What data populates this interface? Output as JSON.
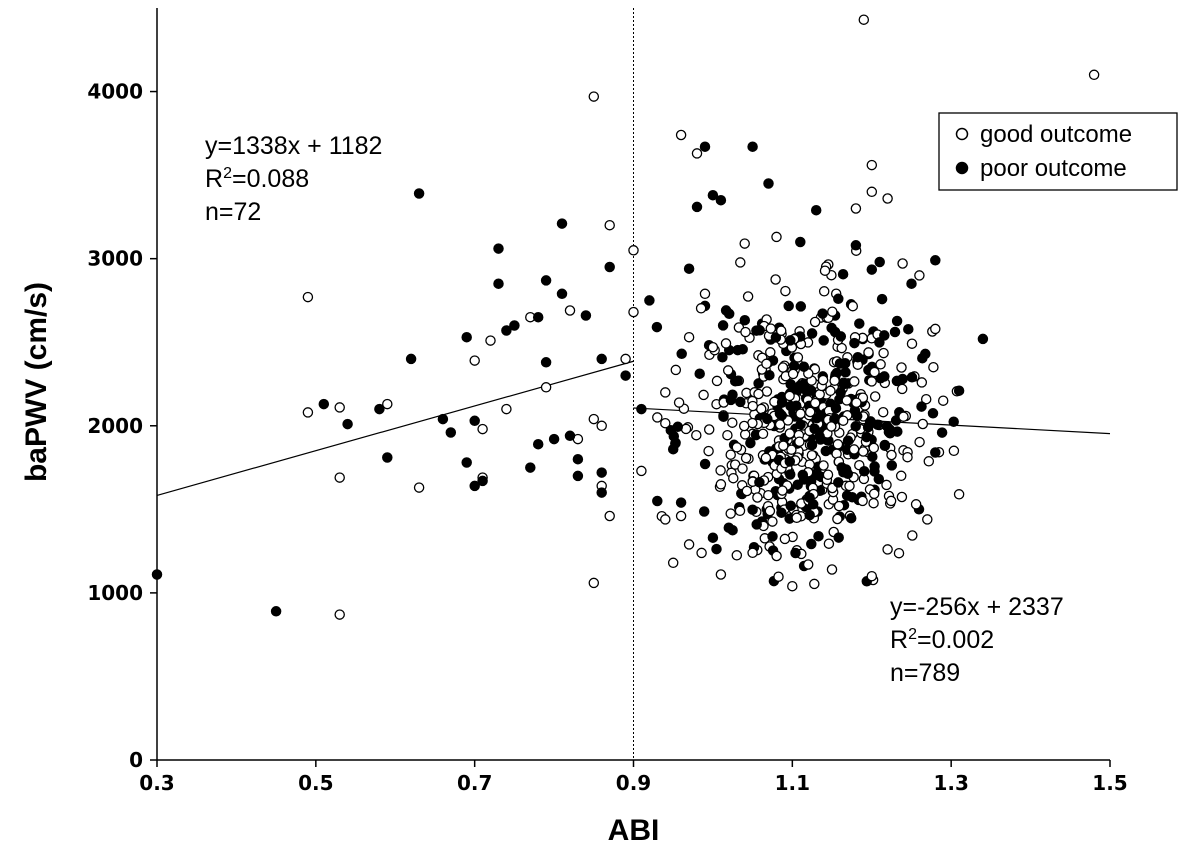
{
  "chart_data": {
    "type": "scatter",
    "xlabel": "ABI",
    "ylabel": "baPWV (cm/s)",
    "xlim": [
      0.3,
      1.5
    ],
    "ylim": [
      0,
      4500
    ],
    "xticks": [
      "0.3",
      "0.5",
      "0.7",
      "0.9",
      "1.1",
      "1.3",
      "1.5"
    ],
    "yticks": [
      "0",
      "1000",
      "2000",
      "3000",
      "4000"
    ],
    "grid": false,
    "legend_position": "top-right",
    "reference_line": {
      "x": 0.9,
      "style": "dotted"
    },
    "regressions": [
      {
        "group": "ABI < 0.9",
        "x": [
          0.3,
          0.9
        ],
        "slope": 1338,
        "intercept": 1182,
        "lines": [
          "y=1338x + 1182",
          "R2=0.088",
          "n=72"
        ]
      },
      {
        "group": "ABI >= 0.9",
        "x": [
          0.9,
          1.5
        ],
        "slope": -256,
        "intercept": 2337,
        "lines": [
          "y=-256x + 2337",
          "R2=0.002",
          "n=789"
        ]
      }
    ],
    "series": [
      {
        "name": "good outcome",
        "marker": "open-circle",
        "points": [
          [
            0.49,
            2770
          ],
          [
            0.49,
            2080
          ],
          [
            0.53,
            2110
          ],
          [
            0.53,
            1690
          ],
          [
            0.53,
            870
          ],
          [
            0.59,
            2130
          ],
          [
            0.63,
            1630
          ],
          [
            0.71,
            1980
          ],
          [
            0.72,
            2510
          ],
          [
            0.7,
            2390
          ],
          [
            0.71,
            1690
          ],
          [
            0.74,
            2100
          ],
          [
            0.77,
            2650
          ],
          [
            0.79,
            2230
          ],
          [
            0.82,
            2690
          ],
          [
            0.83,
            1920
          ],
          [
            0.85,
            3970
          ],
          [
            0.85,
            2040
          ],
          [
            0.86,
            2000
          ],
          [
            0.86,
            1640
          ],
          [
            0.87,
            3200
          ],
          [
            0.87,
            1460
          ],
          [
            0.85,
            1060
          ],
          [
            0.89,
            2400
          ],
          [
            0.9,
            3050
          ],
          [
            0.9,
            2680
          ],
          [
            0.91,
            1730
          ],
          [
            0.93,
            2050
          ],
          [
            0.94,
            2200
          ],
          [
            0.94,
            1440
          ],
          [
            0.95,
            1180
          ],
          [
            0.96,
            3740
          ],
          [
            0.97,
            2530
          ],
          [
            0.98,
            3630
          ],
          [
            0.99,
            2790
          ],
          [
            1.0,
            2470
          ],
          [
            1.01,
            1110
          ],
          [
            1.04,
            3090
          ],
          [
            1.08,
            3130
          ],
          [
            1.19,
            4430
          ],
          [
            1.2,
            3560
          ],
          [
            1.2,
            3400
          ],
          [
            1.22,
            3360
          ],
          [
            1.18,
            3300
          ],
          [
            1.48,
            4100
          ],
          [
            1.28,
            2580
          ],
          [
            1.29,
            2150
          ],
          [
            1.31,
            1590
          ],
          [
            1.22,
            1260
          ],
          [
            1.2,
            1100
          ],
          [
            1.1,
            1040
          ],
          [
            1.12,
            1170
          ],
          [
            1.15,
            1140
          ],
          [
            1.05,
            1240
          ],
          [
            1.27,
            1440
          ],
          [
            1.26,
            2900
          ],
          [
            0.97,
            1290
          ],
          [
            0.96,
            1460
          ],
          [
            1.01,
            1650
          ]
        ]
      },
      {
        "name": "poor outcome",
        "marker": "filled-circle",
        "points": [
          [
            0.3,
            1110
          ],
          [
            0.45,
            890
          ],
          [
            0.51,
            2130
          ],
          [
            0.54,
            2010
          ],
          [
            0.58,
            2100
          ],
          [
            0.59,
            1810
          ],
          [
            0.62,
            2400
          ],
          [
            0.63,
            3390
          ],
          [
            0.66,
            2040
          ],
          [
            0.67,
            1960
          ],
          [
            0.69,
            2530
          ],
          [
            0.69,
            1780
          ],
          [
            0.7,
            2030
          ],
          [
            0.7,
            1640
          ],
          [
            0.71,
            1670
          ],
          [
            0.73,
            3060
          ],
          [
            0.73,
            2850
          ],
          [
            0.74,
            2570
          ],
          [
            0.75,
            2600
          ],
          [
            0.77,
            1750
          ],
          [
            0.78,
            2650
          ],
          [
            0.78,
            1890
          ],
          [
            0.79,
            2870
          ],
          [
            0.79,
            2380
          ],
          [
            0.8,
            1920
          ],
          [
            0.81,
            3210
          ],
          [
            0.81,
            2790
          ],
          [
            0.82,
            1940
          ],
          [
            0.83,
            1800
          ],
          [
            0.83,
            1700
          ],
          [
            0.84,
            2660
          ],
          [
            0.86,
            2400
          ],
          [
            0.86,
            1720
          ],
          [
            0.86,
            1600
          ],
          [
            0.87,
            2950
          ],
          [
            0.89,
            2300
          ],
          [
            0.91,
            2100
          ],
          [
            0.92,
            2750
          ],
          [
            0.93,
            1550
          ],
          [
            0.95,
            1860
          ],
          [
            0.97,
            2940
          ],
          [
            0.98,
            3310
          ],
          [
            0.99,
            3670
          ],
          [
            1.0,
            3380
          ],
          [
            1.01,
            3350
          ],
          [
            1.05,
            3670
          ],
          [
            1.07,
            3450
          ],
          [
            1.11,
            3100
          ],
          [
            1.13,
            3290
          ],
          [
            1.18,
            3080
          ],
          [
            1.21,
            2980
          ],
          [
            1.25,
            2850
          ],
          [
            1.28,
            2990
          ],
          [
            1.28,
            1840
          ],
          [
            1.31,
            2210
          ],
          [
            1.34,
            2520
          ],
          [
            0.96,
            1540
          ],
          [
            1.0,
            1330
          ],
          [
            1.02,
            1390
          ]
        ]
      }
    ],
    "cluster_note": "dense cloud of both groups centered near ABI 1.1, baPWV 2000"
  }
}
